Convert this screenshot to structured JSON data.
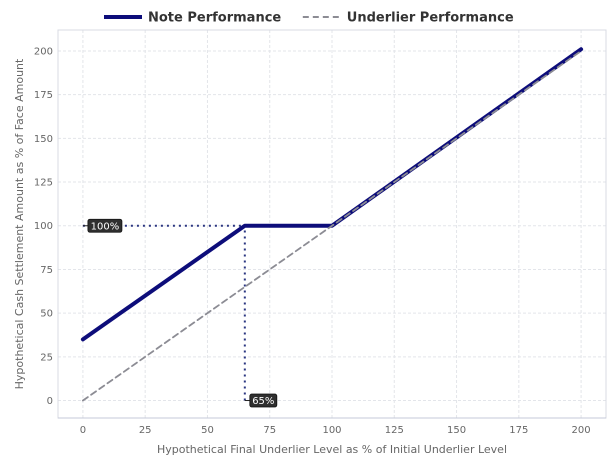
{
  "chart_data": {
    "type": "line",
    "xlabel": "Hypothetical Final Underlier Level as % of Initial Underlier Level",
    "ylabel": "Hypothetical Cash Settlement Amount as % of Face Amount",
    "xlim": [
      -10,
      210
    ],
    "ylim": [
      -10,
      212
    ],
    "xticks": [
      0,
      25,
      50,
      75,
      100,
      125,
      150,
      175,
      200
    ],
    "yticks": [
      0,
      25,
      50,
      75,
      100,
      125,
      150,
      175,
      200
    ],
    "grid": true,
    "legend_position": "top-center",
    "series": [
      {
        "name": "Note Performance",
        "color": "#0d0d7a",
        "style": "solid",
        "x": [
          0,
          65,
          100,
          200
        ],
        "y": [
          35,
          100,
          100,
          201
        ]
      },
      {
        "name": "Underlier Performance",
        "color": "#8c8c94",
        "style": "dashed",
        "x": [
          0,
          200
        ],
        "y": [
          0,
          200
        ]
      }
    ],
    "annotations": [
      {
        "label": "100%",
        "x": 0,
        "y": 100,
        "guide_to_x": 65
      },
      {
        "label": "65%",
        "x": 65,
        "y": 0,
        "guide_to_y": 100
      }
    ]
  }
}
